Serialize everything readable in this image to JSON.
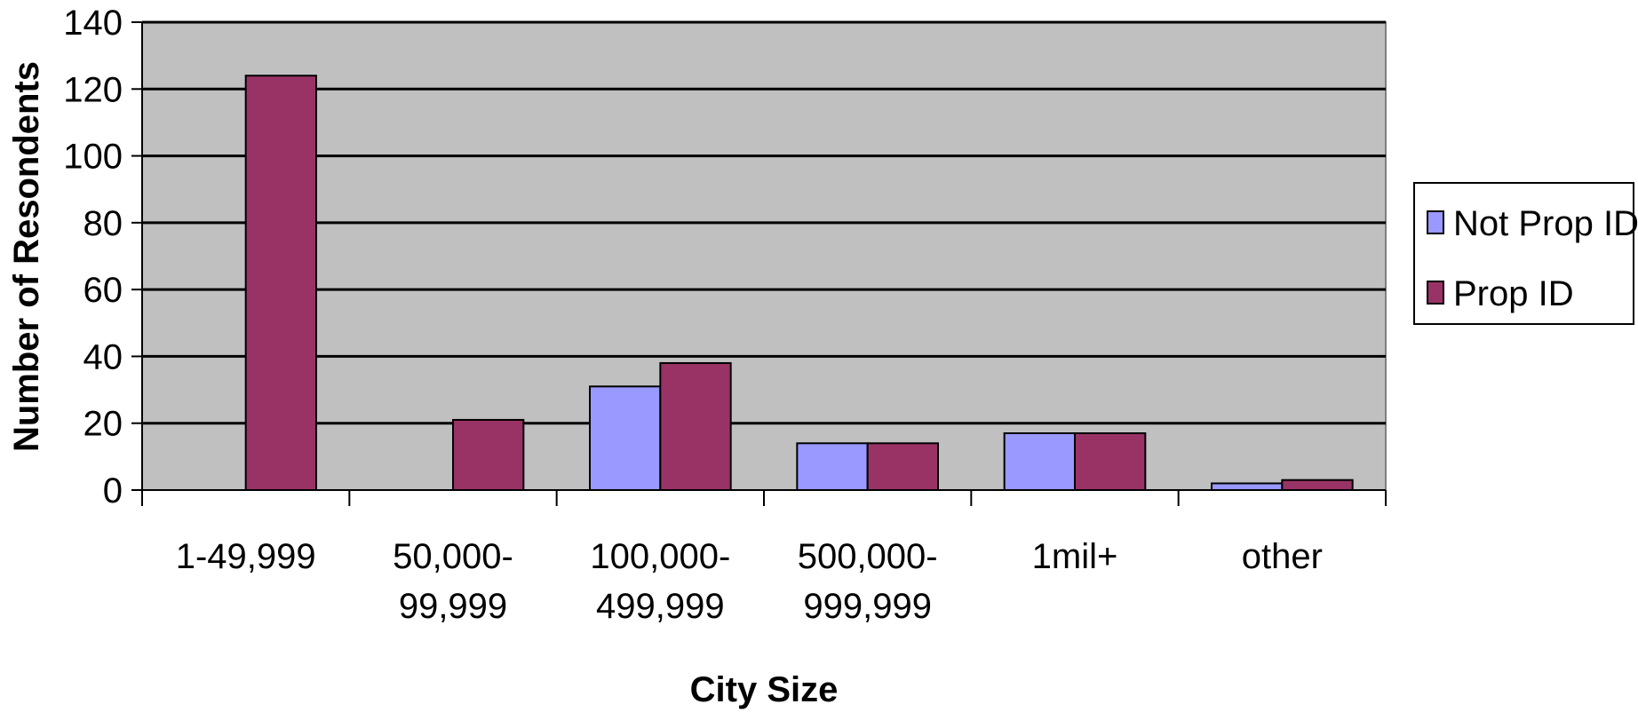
{
  "chart_data": {
    "type": "bar",
    "title": "",
    "xlabel": "City Size",
    "ylabel": "Number of Resondents",
    "ylim": [
      0,
      140
    ],
    "yticks": [
      "0",
      "20",
      "40",
      "60",
      "80",
      "100",
      "120",
      "140"
    ],
    "categories": [
      [
        "1-49,999"
      ],
      [
        "50,000-",
        "99,999"
      ],
      [
        "100,000-",
        "499,999"
      ],
      [
        "500,000-",
        "999,999"
      ],
      [
        "1mil+"
      ],
      [
        "other"
      ]
    ],
    "series": [
      {
        "name": "Not Prop ID",
        "color": "#9999ff",
        "values": [
          0,
          0,
          31,
          14,
          17,
          2
        ]
      },
      {
        "name": "Prop ID",
        "color": "#993366",
        "values": [
          124,
          21,
          38,
          14,
          17,
          3
        ]
      }
    ],
    "plot_background": "#c0c0c0",
    "grid": true,
    "legend_position": "right"
  }
}
